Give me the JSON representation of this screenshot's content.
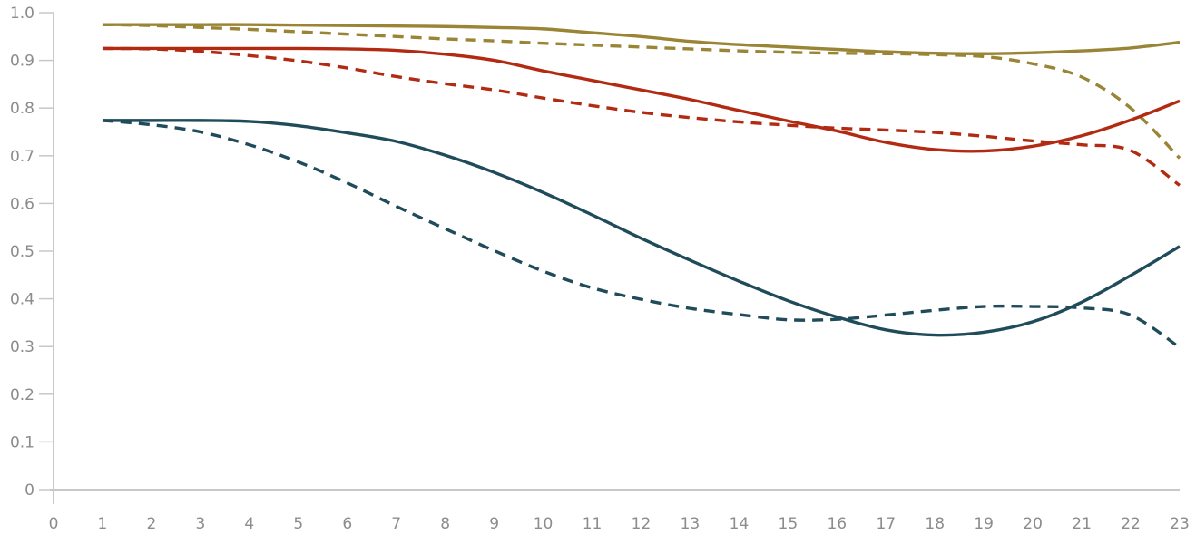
{
  "chart_data": {
    "type": "line",
    "title": "",
    "xlabel": "",
    "ylabel": "",
    "xlim": [
      0,
      23
    ],
    "ylim": [
      0,
      1.0
    ],
    "x_ticks": [
      "0",
      "1",
      "2",
      "3",
      "4",
      "5",
      "6",
      "7",
      "8",
      "9",
      "10",
      "11",
      "12",
      "13",
      "14",
      "15",
      "16",
      "17",
      "18",
      "19",
      "20",
      "21",
      "22",
      "23"
    ],
    "y_ticks": [
      "0",
      "0.1",
      "0.2",
      "0.3",
      "0.4",
      "0.5",
      "0.6",
      "0.7",
      "0.8",
      "0.9",
      "1.0"
    ],
    "grid": false,
    "legend": "none",
    "series": [
      {
        "style": "solid",
        "color": "#9a8536",
        "x": [
          1,
          2,
          3,
          4,
          5,
          6,
          7,
          8,
          9,
          10,
          11,
          12,
          13,
          14,
          15,
          16,
          17,
          18,
          19,
          20,
          21,
          22,
          23
        ],
        "values": [
          0.975,
          0.975,
          0.975,
          0.975,
          0.974,
          0.973,
          0.972,
          0.971,
          0.969,
          0.966,
          0.958,
          0.95,
          0.94,
          0.933,
          0.928,
          0.923,
          0.918,
          0.915,
          0.914,
          0.916,
          0.92,
          0.926,
          0.938
        ]
      },
      {
        "style": "dashed",
        "color": "#9a8536",
        "x": [
          1,
          2,
          3,
          4,
          5,
          6,
          7,
          8,
          9,
          10,
          11,
          12,
          13,
          14,
          15,
          16,
          17,
          18,
          19,
          20,
          21,
          22,
          23
        ],
        "values": [
          0.975,
          0.973,
          0.969,
          0.965,
          0.96,
          0.955,
          0.95,
          0.945,
          0.941,
          0.936,
          0.932,
          0.928,
          0.924,
          0.92,
          0.917,
          0.915,
          0.914,
          0.912,
          0.908,
          0.893,
          0.865,
          0.8,
          0.695
        ]
      },
      {
        "style": "solid",
        "color": "#b22a12",
        "x": [
          1,
          2,
          3,
          4,
          5,
          6,
          7,
          8,
          9,
          10,
          11,
          12,
          13,
          14,
          15,
          16,
          17,
          18,
          19,
          20,
          21,
          22,
          23
        ],
        "values": [
          0.925,
          0.925,
          0.925,
          0.925,
          0.925,
          0.924,
          0.921,
          0.913,
          0.9,
          0.878,
          0.858,
          0.838,
          0.818,
          0.795,
          0.773,
          0.752,
          0.728,
          0.713,
          0.71,
          0.72,
          0.742,
          0.775,
          0.815
        ]
      },
      {
        "style": "dashed",
        "color": "#b22a12",
        "x": [
          1,
          2,
          3,
          4,
          5,
          6,
          7,
          8,
          9,
          10,
          11,
          12,
          13,
          14,
          15,
          16,
          17,
          18,
          19,
          20,
          21,
          22,
          23
        ],
        "values": [
          0.925,
          0.924,
          0.919,
          0.91,
          0.899,
          0.884,
          0.866,
          0.851,
          0.838,
          0.821,
          0.805,
          0.791,
          0.78,
          0.771,
          0.764,
          0.758,
          0.754,
          0.749,
          0.741,
          0.731,
          0.723,
          0.711,
          0.638
        ]
      },
      {
        "style": "solid",
        "color": "#1f4b5a",
        "x": [
          1,
          2,
          3,
          4,
          5,
          6,
          7,
          8,
          9,
          10,
          11,
          12,
          13,
          14,
          15,
          16,
          17,
          18,
          19,
          20,
          21,
          22,
          23
        ],
        "values": [
          0.774,
          0.774,
          0.774,
          0.772,
          0.763,
          0.748,
          0.73,
          0.701,
          0.665,
          0.623,
          0.576,
          0.527,
          0.481,
          0.437,
          0.396,
          0.362,
          0.335,
          0.324,
          0.33,
          0.352,
          0.393,
          0.449,
          0.51
        ]
      },
      {
        "style": "dashed",
        "color": "#1f4b5a",
        "x": [
          1,
          2,
          3,
          4,
          5,
          6,
          7,
          8,
          9,
          10,
          11,
          12,
          13,
          14,
          15,
          16,
          17,
          18,
          19,
          20,
          21,
          22,
          23
        ],
        "values": [
          0.774,
          0.765,
          0.75,
          0.723,
          0.687,
          0.643,
          0.594,
          0.547,
          0.501,
          0.458,
          0.423,
          0.399,
          0.38,
          0.367,
          0.356,
          0.357,
          0.366,
          0.376,
          0.384,
          0.384,
          0.381,
          0.366,
          0.298
        ]
      }
    ]
  }
}
